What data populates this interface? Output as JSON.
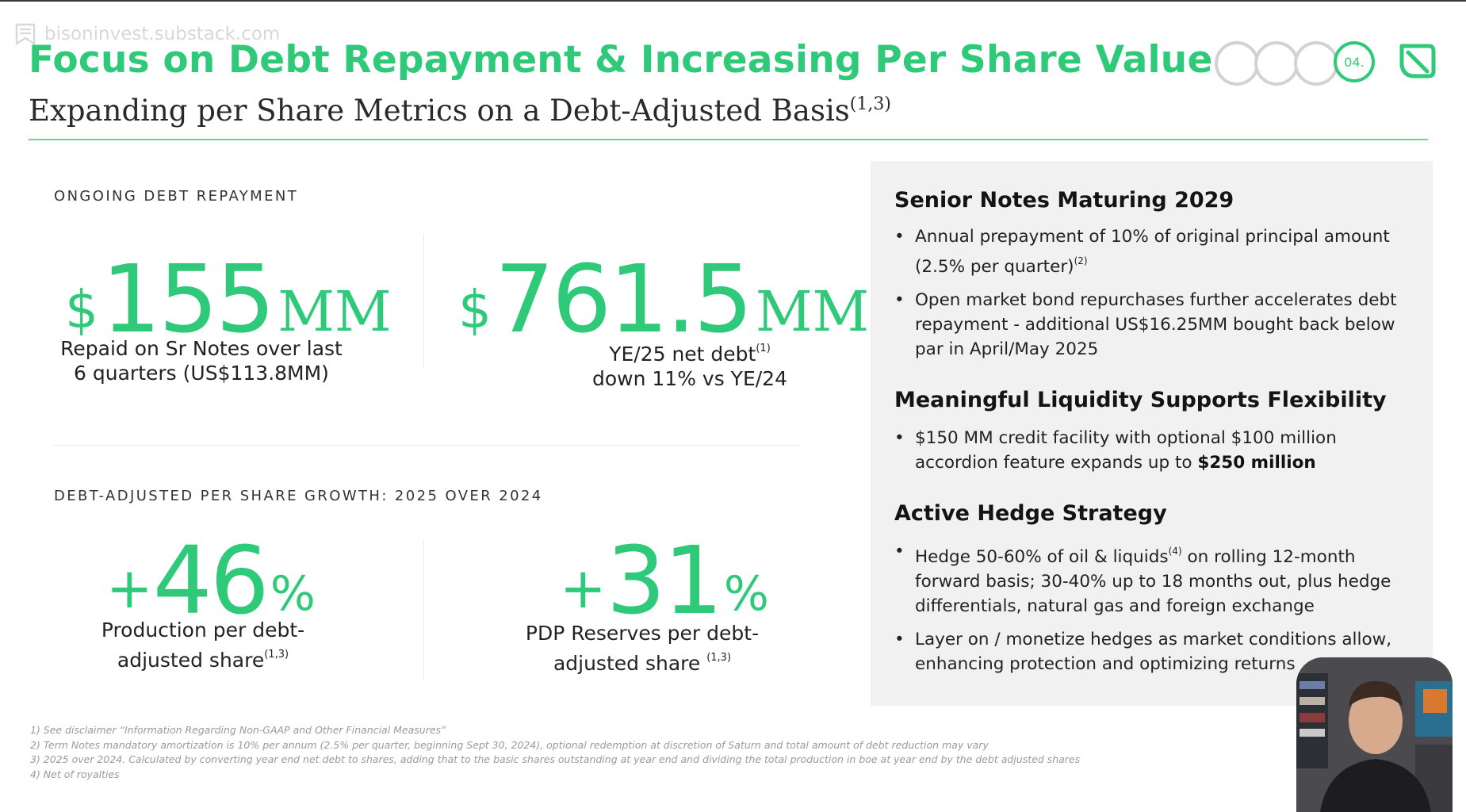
{
  "watermark": {
    "text": "bisoninvest.substack.com",
    "icon": "bookmark-icon"
  },
  "header": {
    "title": "Focus on Debt Repayment & Increasing Per Share Value",
    "subtitle": "Expanding per Share Metrics on a Debt-Adjusted Basis",
    "subtitle_sup": "(1,3)",
    "section_indicator": "04.",
    "logo_icon": "brand-logo-icon"
  },
  "colors": {
    "accent": "#2fc97a",
    "panel": "#f1f1f1",
    "inactive_dot": "#d2d2d2"
  },
  "debt": {
    "label": "ONGOING DEBT REPAYMENT",
    "metric1": {
      "currency": "$",
      "value": "155",
      "unit": "MM",
      "caption1": "Repaid on Sr Notes over last",
      "caption2": "6 quarters (US$113.8MM)"
    },
    "metric2": {
      "currency": "$",
      "value": "761.5",
      "unit": "MM",
      "caption1": "YE/25 net debt",
      "caption1_sup": "(1)",
      "caption2": "down 11% vs YE/24"
    }
  },
  "growth": {
    "label": "DEBT-ADJUSTED PER SHARE GROWTH: 2025 OVER 2024",
    "metric1": {
      "sign": "+",
      "value": "46",
      "unit": "%",
      "caption1": "Production per debt-",
      "caption2": "adjusted share",
      "caption2_sup": "(1,3)"
    },
    "metric2": {
      "sign": "+",
      "value": "31",
      "unit": "%",
      "caption1": "PDP Reserves per debt-",
      "caption2": "adjusted share ",
      "caption2_sup": "(1,3)"
    }
  },
  "panel": {
    "h1": "Senior Notes Maturing 2029",
    "b1": {
      "line1": "Annual prepayment of 10% of original principal amount",
      "line2": "(2.5% per quarter)",
      "sup": "(2)"
    },
    "b2": "Open market bond repurchases further accelerates debt repayment - additional US$16.25MM bought back below par in April/May 2025",
    "h2": "Meaningful Liquidity Supports Flexibility",
    "b3": {
      "text": "$150 MM credit facility with optional $100 million accordion feature expands up to ",
      "bold": "$250 million"
    },
    "h3": "Active Hedge Strategy",
    "b4": {
      "pre": "Hedge 50-60% of oil & liquids",
      "sup": "(4)",
      "post": " on rolling 12-month forward basis; 30-40% up to 18 months out, plus hedge differentials, natural gas and foreign exchange"
    },
    "b5": "Layer on / monetize hedges as market conditions allow, enhancing protection and optimizing returns"
  },
  "footnotes": [
    "1)   See disclaimer “Information Regarding Non-GAAP and Other Financial Measures”",
    "2)   Term Notes mandatory amortization is 10% per annum (2.5% per quarter, beginning Sept 30, 2024), optional redemption at discretion of Saturn and total amount of debt reduction may vary",
    "3)   2025 over 2024. Calculated by converting year end net debt to shares, adding that to the basic shares outstanding at year end and dividing the total production in boe at year end by the debt adjusted shares",
    "4)   Net of royalties"
  ]
}
